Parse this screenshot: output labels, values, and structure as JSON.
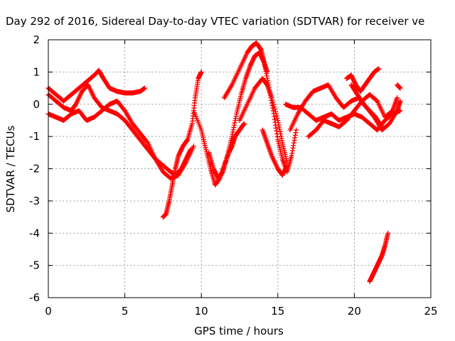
{
  "chart_data": {
    "type": "scatter",
    "title": "Day 292 of 2016, Sidereal Day-to-day VTEC variation (SDTVAR) for receiver ve",
    "xlabel": "GPS time / hours",
    "ylabel": "SDTVAR / TECUs",
    "xlim": [
      0,
      25
    ],
    "ylim": [
      -6,
      2
    ],
    "xticks": [
      "0",
      "5",
      "10",
      "15",
      "20",
      "25"
    ],
    "yticks": [
      "2",
      "1",
      "0",
      "-1",
      "-2",
      "-3",
      "-4",
      "-5",
      "-6"
    ],
    "grid": true,
    "marker": "+",
    "series_color": "#ff0000",
    "series": [
      {
        "x": [
          0,
          0.5,
          1,
          1.5,
          2,
          2.5,
          3,
          3.3,
          3.6,
          4,
          4.5,
          5,
          5.5,
          6,
          6.3
        ],
        "y": [
          0.5,
          0.3,
          0.1,
          0.3,
          0.5,
          0.7,
          0.9,
          1.05,
          0.8,
          0.5,
          0.4,
          0.35,
          0.35,
          0.4,
          0.5
        ]
      },
      {
        "x": [
          0,
          0.5,
          1,
          1.5,
          1.8,
          2.2,
          2.6,
          3,
          3.5,
          4,
          4.5,
          5,
          5.5,
          6,
          6.5,
          7,
          7.5,
          8,
          8.3,
          8.7,
          9,
          9.3
        ],
        "y": [
          0.3,
          0.1,
          -0.1,
          -0.2,
          0,
          0.4,
          0.6,
          0.2,
          -0.1,
          -0.2,
          -0.3,
          -0.5,
          -0.8,
          -1.1,
          -1.4,
          -1.7,
          -1.9,
          -2.1,
          -2.2,
          -2.0,
          -1.7,
          -1.4
        ]
      },
      {
        "x": [
          0,
          0.5,
          1,
          1.5,
          2,
          2.5,
          3,
          3.5,
          4,
          4.5,
          5,
          5.5,
          6,
          6.5,
          7,
          7.5,
          8,
          8.5,
          9,
          9.5
        ],
        "y": [
          -0.3,
          -0.4,
          -0.5,
          -0.3,
          -0.2,
          -0.5,
          -0.4,
          -0.2,
          0,
          0.1,
          -0.2,
          -0.6,
          -0.9,
          -1.2,
          -1.7,
          -2.1,
          -2.3,
          -2.2,
          -1.8,
          -1.3
        ]
      },
      {
        "x": [
          7.5,
          7.7,
          7.9,
          8.1,
          8.3,
          8.5,
          8.8,
          9.1,
          9.4,
          9.6,
          9.8,
          10
        ],
        "y": [
          -3.5,
          -3.4,
          -3.0,
          -2.5,
          -2.0,
          -1.6,
          -1.3,
          -1.1,
          -0.6,
          0.2,
          0.8,
          1.0
        ]
      },
      {
        "x": [
          9.5,
          10,
          10.3,
          10.6,
          10.9,
          11.2,
          11.5,
          11.8,
          12,
          12.2,
          12.5,
          12.8
        ],
        "y": [
          -0.2,
          -0.8,
          -1.4,
          -2.0,
          -2.5,
          -2.3,
          -1.9,
          -1.5,
          -1.3,
          -1.0,
          -0.8,
          -0.6
        ]
      },
      {
        "x": [
          10.5,
          10.8,
          11.1,
          11.4,
          11.7,
          12,
          12.3,
          12.6,
          12.9,
          13.2,
          13.5,
          13.8,
          14.1,
          14.4,
          14.7,
          15,
          15.3,
          15.6,
          15.9,
          16.2
        ],
        "y": [
          -1.5,
          -2.0,
          -2.3,
          -2.1,
          -1.6,
          -1.0,
          -0.3,
          0.3,
          0.8,
          1.2,
          1.5,
          1.6,
          1.3,
          0.6,
          -0.2,
          -1.1,
          -1.7,
          -2.1,
          -1.6,
          -0.8
        ]
      },
      {
        "x": [
          11.5,
          12,
          12.5,
          13,
          13.3,
          13.6,
          13.9,
          14.1,
          14.3
        ],
        "y": [
          0.2,
          0.6,
          1.1,
          1.6,
          1.8,
          1.9,
          1.7,
          1.3,
          1.0
        ]
      },
      {
        "x": [
          12.5,
          13,
          13.5,
          14,
          14.3,
          14.6,
          15,
          15.3,
          15.6
        ],
        "y": [
          -0.5,
          0,
          0.5,
          0.8,
          0.6,
          0.2,
          -0.5,
          -1.2,
          -1.8
        ]
      },
      {
        "x": [
          14,
          14.3,
          14.6,
          15,
          15.3,
          15.6
        ],
        "y": [
          -0.8,
          -1.2,
          -1.6,
          -2.0,
          -2.2,
          -1.9
        ]
      },
      {
        "x": [
          15.5,
          16,
          16.5,
          17,
          17.5,
          18,
          18.5,
          19,
          19.5,
          20,
          20.5,
          21,
          21.5,
          22,
          22.5,
          23
        ],
        "y": [
          0,
          -0.1,
          -0.1,
          -0.3,
          -0.5,
          -0.4,
          -0.3,
          -0.5,
          -0.4,
          -0.3,
          -0.4,
          -0.6,
          -0.8,
          -0.5,
          -0.3,
          -0.2
        ]
      },
      {
        "x": [
          15.8,
          16.3,
          16.8,
          17.3,
          17.8,
          18.3,
          18.8,
          19.3,
          19.8,
          20.3,
          20.8,
          21.3,
          21.8,
          22.3,
          22.8,
          23
        ],
        "y": [
          -0.8,
          -0.3,
          0.1,
          0.4,
          0.5,
          0.6,
          0.2,
          -0.1,
          0.1,
          0.2,
          -0.1,
          -0.4,
          -0.8,
          -0.6,
          -0.2,
          0.1
        ]
      },
      {
        "x": [
          17,
          17.5,
          18,
          18.5,
          19,
          19.5,
          20,
          20.5,
          21,
          21.5,
          22,
          22.5,
          22.8
        ],
        "y": [
          -1.0,
          -0.8,
          -0.5,
          -0.6,
          -0.7,
          -0.5,
          -0.2,
          0.1,
          0.3,
          0.1,
          -0.4,
          -0.2,
          0.2
        ]
      },
      {
        "x": [
          19.5,
          19.8,
          20.1,
          20.4,
          20.7,
          21,
          21.3,
          21.6
        ],
        "y": [
          0.8,
          0.9,
          0.6,
          0.4,
          0.6,
          0.8,
          1.0,
          1.1
        ]
      },
      {
        "x": [
          19.8,
          20.2,
          20.6,
          21,
          21.4,
          21.8
        ],
        "y": [
          0.6,
          0.3,
          0.0,
          -0.2,
          -0.4,
          -0.7
        ]
      },
      {
        "x": [
          22.8,
          23
        ],
        "y": [
          0.6,
          0.5
        ]
      },
      {
        "x": [
          21,
          21.2,
          21.4,
          21.6,
          21.8,
          22,
          22.2
        ],
        "y": [
          -5.5,
          -5.3,
          -5.1,
          -4.9,
          -4.7,
          -4.4,
          -4.0
        ]
      }
    ]
  }
}
